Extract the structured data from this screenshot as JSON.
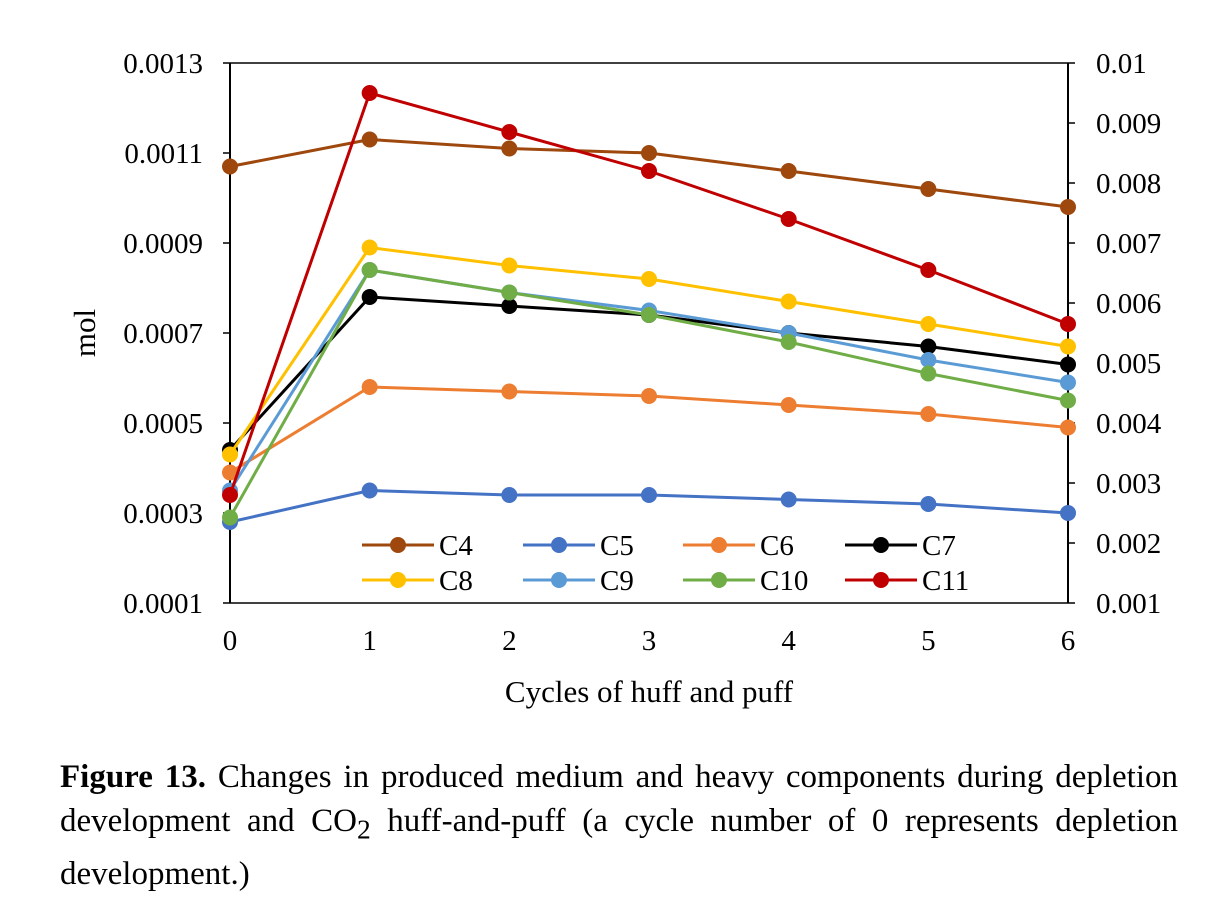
{
  "chart_data": {
    "type": "line",
    "title": "",
    "xlabel": "Cycles of huff and puff",
    "ylabel": "mol",
    "x": [
      0,
      1,
      2,
      3,
      4,
      5,
      6
    ],
    "xlim": [
      0,
      6
    ],
    "ylim": [
      0.0001,
      0.0013
    ],
    "y2lim": [
      0.001,
      0.01
    ],
    "yticks": [
      "0.0013",
      "0.0011",
      "0.0009",
      "0.0007",
      "0.0005",
      "0.0003",
      "0.0001"
    ],
    "y2ticks": [
      "0.01",
      "0.009",
      "0.008",
      "0.007",
      "0.006",
      "0.005",
      "0.004",
      "0.003",
      "0.002",
      "0.001"
    ],
    "xticks": [
      "0",
      "1",
      "2",
      "3",
      "4",
      "5",
      "6"
    ],
    "grid": false,
    "legend_position": "bottom-inside",
    "series": [
      {
        "name": "C4",
        "color": "#9e480e",
        "axis": "left",
        "values": [
          0.00107,
          0.00113,
          0.00111,
          0.0011,
          0.00106,
          0.00102,
          0.00098
        ]
      },
      {
        "name": "C5",
        "color": "#4472c4",
        "axis": "left",
        "values": [
          0.00028,
          0.00035,
          0.00034,
          0.00034,
          0.00033,
          0.00032,
          0.0003
        ]
      },
      {
        "name": "C6",
        "color": "#ed7d31",
        "axis": "left",
        "values": [
          0.00039,
          0.00058,
          0.00057,
          0.00056,
          0.00054,
          0.00052,
          0.00049
        ]
      },
      {
        "name": "C7",
        "color": "#000000",
        "axis": "left",
        "values": [
          0.00044,
          0.00078,
          0.00076,
          0.00074,
          0.0007,
          0.00067,
          0.00063
        ]
      },
      {
        "name": "C8",
        "color": "#ffc000",
        "axis": "left",
        "values": [
          0.00043,
          0.00089,
          0.00085,
          0.00082,
          0.00077,
          0.00072,
          0.00067
        ]
      },
      {
        "name": "C9",
        "color": "#5b9bd5",
        "axis": "left",
        "values": [
          0.00035,
          0.00084,
          0.00079,
          0.00075,
          0.0007,
          0.00064,
          0.00059
        ]
      },
      {
        "name": "C10",
        "color": "#70ad47",
        "axis": "left",
        "values": [
          0.00029,
          0.00084,
          0.00079,
          0.00074,
          0.00068,
          0.00061,
          0.00055
        ]
      },
      {
        "name": "C11",
        "color": "#c00000",
        "axis": "right",
        "values": [
          0.0028,
          0.0095,
          0.00885,
          0.0082,
          0.0074,
          0.00655,
          0.00565
        ]
      }
    ]
  },
  "caption": {
    "label": "Figure 13.",
    "text_before_sub": " Changes in produced medium and heavy components during depletion development and CO",
    "subscript": "2",
    "text_after_sub": " huff-and-puff (a cycle number of 0 represents depletion development.)"
  }
}
